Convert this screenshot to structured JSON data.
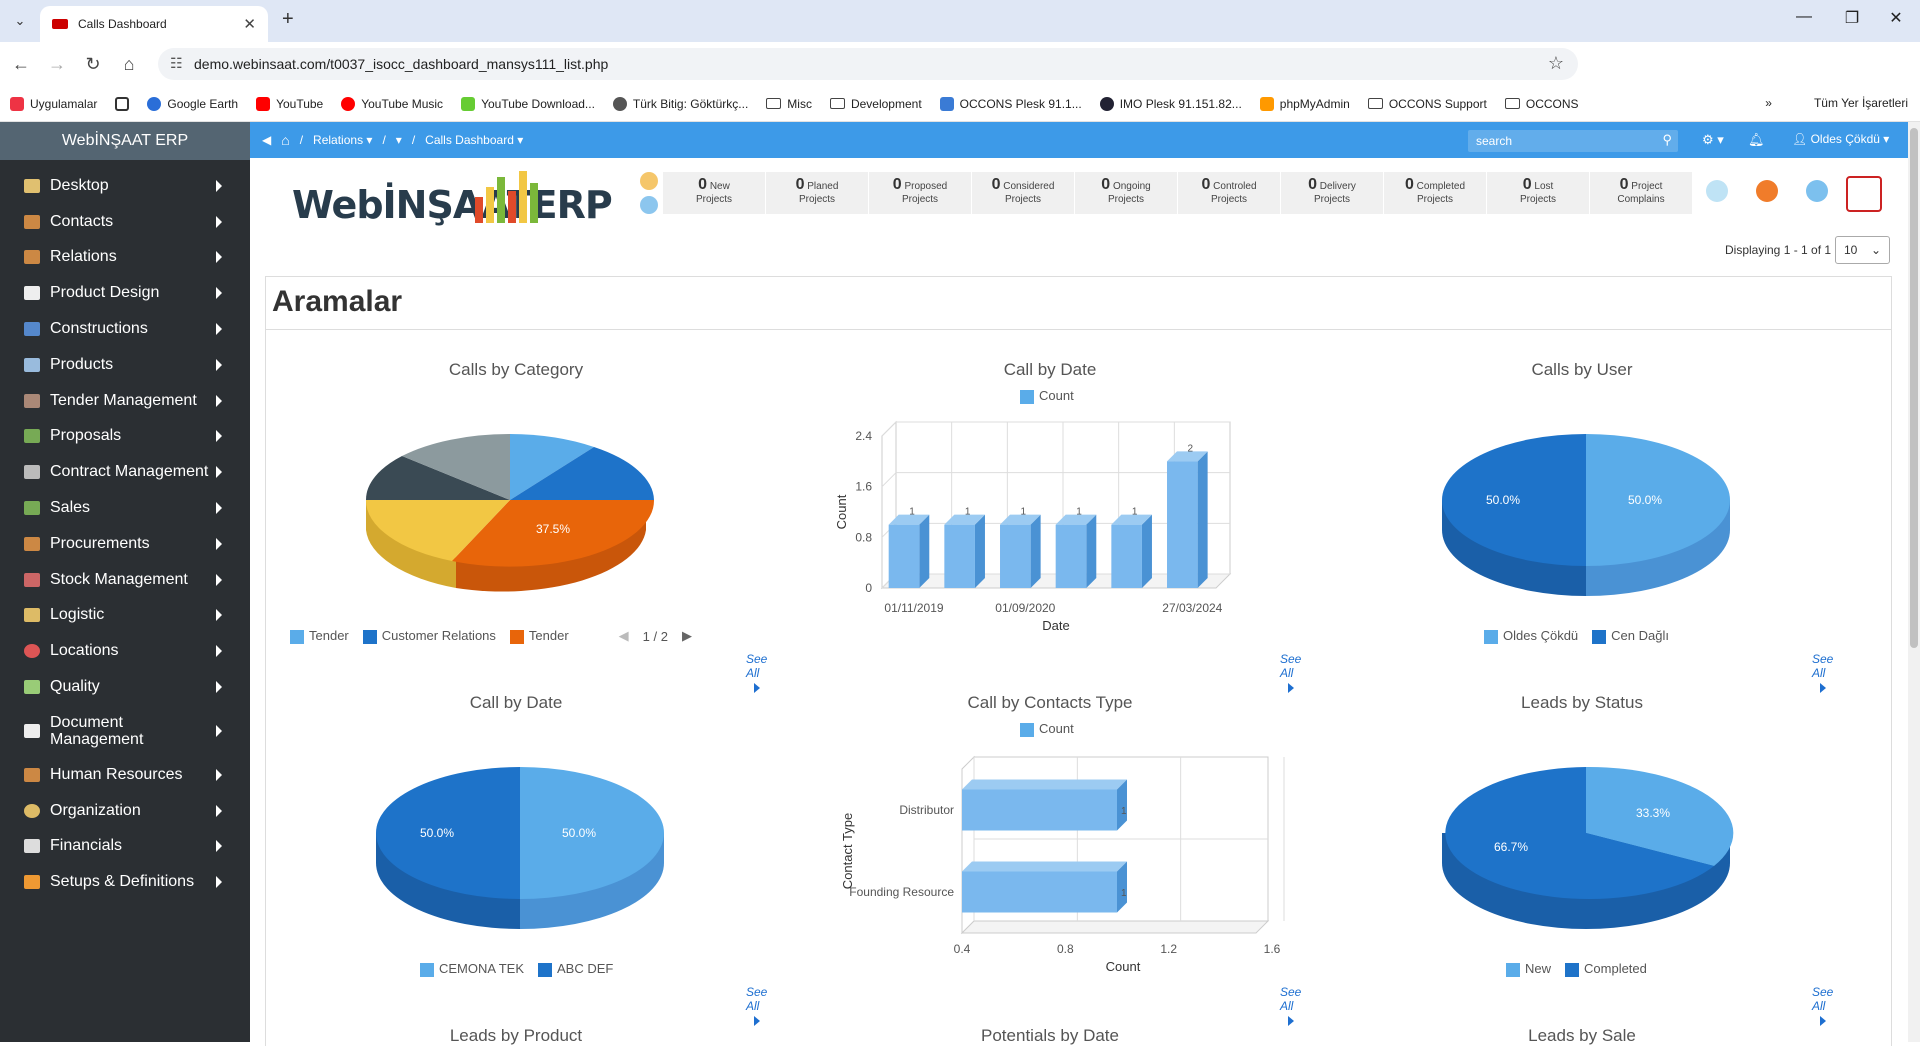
{
  "browser": {
    "tab_title": "Calls Dashboard",
    "url": "demo.webinsaat.com/t0037_isocc_dashboard_mansys111_list.php",
    "bookmarks": [
      "Uygulamalar",
      "Google Earth",
      "YouTube",
      "YouTube Music",
      "YouTube Download...",
      "Türk Bitig: Göktürkç...",
      "Misc",
      "Development",
      "OCCONS Plesk 91.1...",
      "IMO Plesk 91.151.82...",
      "phpMyAdmin",
      "OCCONS Support",
      "OCCONS"
    ],
    "bookmarks_more": "Tüm Yer İşaretleri"
  },
  "sidebar": {
    "brand": "WebİNŞAAT ERP",
    "items": [
      "Desktop",
      "Contacts",
      "Relations",
      "Product Design",
      "Constructions",
      "Products",
      "Tender Management",
      "Proposals",
      "Contract Management",
      "Sales",
      "Procurements",
      "Stock Management",
      "Logistic",
      "Locations",
      "Quality",
      "Document Management",
      "Human Resources",
      "Organization",
      "Financials",
      "Setups & Definitions"
    ]
  },
  "header": {
    "crumb_relations": "Relations",
    "crumb_sep": "/",
    "crumb_current": "Calls Dashboard",
    "search_placeholder": "search",
    "user": "Oldes Çökdü"
  },
  "logo_text": "WebİNŞAATERP",
  "stats": [
    {
      "num": "0",
      "l1": "New",
      "l2": "Projects"
    },
    {
      "num": "0",
      "l1": "Planed",
      "l2": "Projects"
    },
    {
      "num": "0",
      "l1": "Proposed",
      "l2": "Projects"
    },
    {
      "num": "0",
      "l1": "Considered",
      "l2": "Projects"
    },
    {
      "num": "0",
      "l1": "Ongoing",
      "l2": "Projects"
    },
    {
      "num": "0",
      "l1": "Controled",
      "l2": "Projects"
    },
    {
      "num": "0",
      "l1": "Delivery",
      "l2": "Projects"
    },
    {
      "num": "0",
      "l1": "Completed",
      "l2": "Projects"
    },
    {
      "num": "0",
      "l1": "Lost",
      "l2": "Projects"
    },
    {
      "num": "0",
      "l1": "Project",
      "l2": "Complains"
    }
  ],
  "displaying": "Displaying 1 - 1 of 1",
  "page_size": "10",
  "panel_title": "Aramalar",
  "see_all": "See All",
  "colors": {
    "light": "#5aace9",
    "mid": "#1e73c9",
    "orange": "#e8650a",
    "yellow": "#f2c744",
    "dark": "#3a4a54",
    "grey": "#8c9a9e"
  },
  "chart_data": [
    {
      "type": "pie",
      "title": "Calls by Category",
      "slices": [
        {
          "label": "Tender",
          "value": 12.5
        },
        {
          "label": "Customer Relations",
          "value": 12.5
        },
        {
          "label": "Tender",
          "value": 37.5
        },
        {
          "label": "",
          "value": 12.5
        },
        {
          "label": "",
          "value": 12.5
        },
        {
          "label": "",
          "value": 12.5
        }
      ],
      "shown_label": "37.5%",
      "legend": [
        "Tender",
        "Customer Relations",
        "Tender"
      ],
      "pager": "1 / 2"
    },
    {
      "type": "bar",
      "title": "Call by Date",
      "legend": [
        "Count"
      ],
      "xlabel": "Date",
      "ylabel": "Count",
      "categories": [
        "01/11/2019",
        "",
        "01/09/2020",
        "",
        "",
        "27/03/2024"
      ],
      "values": [
        1,
        1,
        1,
        1,
        1,
        2
      ],
      "yticks": [
        "0",
        "0.8",
        "1.6",
        "2.4"
      ],
      "ylim": [
        0,
        2.4
      ]
    },
    {
      "type": "pie",
      "title": "Calls by User",
      "slices": [
        {
          "label": "Oldes Çökdü",
          "value": 50.0
        },
        {
          "label": "Cen Dağlı",
          "value": 50.0
        }
      ],
      "legend": [
        "Oldes Çökdü",
        "Cen Dağlı"
      ],
      "labels": [
        "50.0%",
        "50.0%"
      ]
    },
    {
      "type": "pie",
      "title": "Call by Date",
      "slices": [
        {
          "label": "CEMONA TEK",
          "value": 50.0
        },
        {
          "label": "ABC DEF",
          "value": 50.0
        }
      ],
      "legend": [
        "CEMONA TEK",
        "ABC DEF"
      ],
      "labels": [
        "50.0%",
        "50.0%"
      ]
    },
    {
      "type": "bar",
      "orientation": "horizontal",
      "title": "Call by Contacts Type",
      "legend": [
        "Count"
      ],
      "xlabel": "Count",
      "ylabel": "Contact Type",
      "categories": [
        "Distributor",
        "Founding Resource"
      ],
      "values": [
        1,
        1
      ],
      "xticks": [
        "0.4",
        "0.8",
        "1.2",
        "1.6"
      ]
    },
    {
      "type": "pie",
      "title": "Leads by Status",
      "slices": [
        {
          "label": "New",
          "value": 33.3
        },
        {
          "label": "Completed",
          "value": 66.7
        }
      ],
      "legend": [
        "New",
        "Completed"
      ],
      "labels": [
        "33.3%",
        "66.7%"
      ]
    }
  ],
  "next_row_titles": [
    "Leads by Product",
    "Potentials by Date",
    "Leads by Sale"
  ]
}
